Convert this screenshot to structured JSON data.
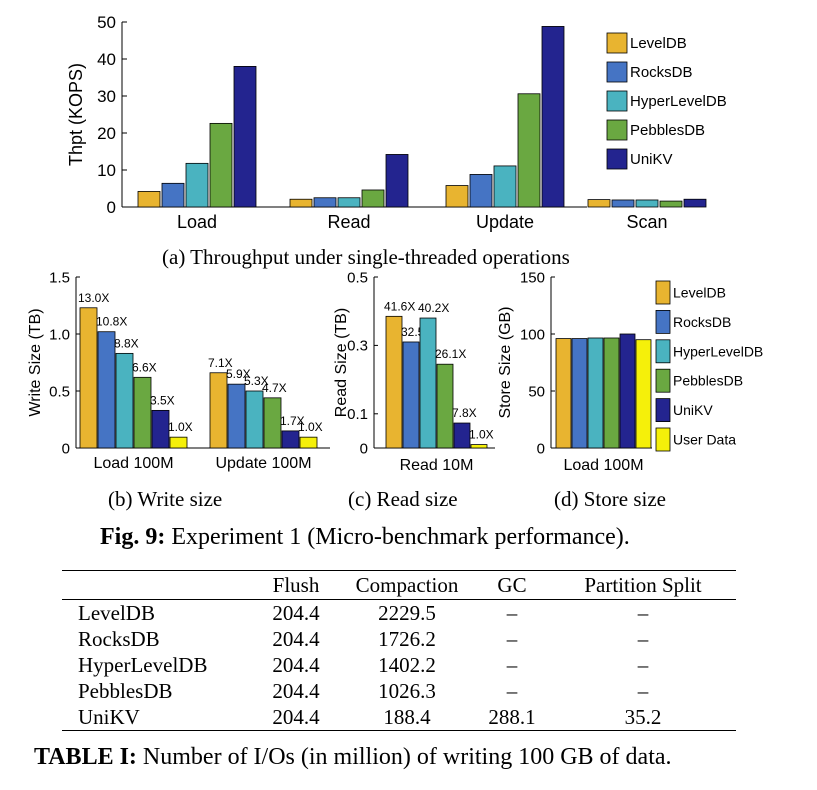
{
  "colors": {
    "LevelDB": "#e8b430",
    "RocksDB": "#4574c4",
    "HyperLevelDB": "#4ab3c0",
    "PebblesDB": "#6aa841",
    "UniKV": "#23248f",
    "User Data": "#f5f00a"
  },
  "chart_data": [
    {
      "id": "a",
      "type": "bar",
      "title": "(a) Throughput under single-threaded operations",
      "xlabel": "",
      "ylabel": "Thpt (KOPS)",
      "ylim": [
        0,
        50
      ],
      "yticks": [
        "0",
        "10",
        "20",
        "30",
        "40",
        "50"
      ],
      "categories": [
        "Load",
        "Read",
        "Update",
        "Scan"
      ],
      "legend": "right",
      "series": [
        {
          "name": "LevelDB",
          "values": [
            4.2,
            2.1,
            5.8,
            2.0
          ]
        },
        {
          "name": "RocksDB",
          "values": [
            6.4,
            2.5,
            8.8,
            1.9
          ]
        },
        {
          "name": "HyperLevelDB",
          "values": [
            11.8,
            2.5,
            11.1,
            1.9
          ]
        },
        {
          "name": "PebblesDB",
          "values": [
            22.6,
            4.6,
            30.6,
            1.6
          ]
        },
        {
          "name": "UniKV",
          "values": [
            38.0,
            14.2,
            48.8,
            2.1
          ]
        }
      ]
    },
    {
      "id": "b",
      "type": "bar",
      "title": "(b) Write size",
      "xlabel": "",
      "ylabel": "Write Size (TB)",
      "ylim": [
        0,
        1.5
      ],
      "yticks": [
        "0",
        "0.5",
        "1.0",
        "1.5"
      ],
      "categories": [
        "Load 100M",
        "Update 100M"
      ],
      "series": [
        {
          "name": "LevelDB",
          "values": [
            1.23,
            0.66
          ],
          "labels": [
            "13.0X",
            "7.1X"
          ]
        },
        {
          "name": "RocksDB",
          "values": [
            1.02,
            0.56
          ],
          "labels": [
            "10.8X",
            "5.9X"
          ]
        },
        {
          "name": "HyperLevelDB",
          "values": [
            0.83,
            0.5
          ],
          "labels": [
            "8.8X",
            "5.3X"
          ]
        },
        {
          "name": "PebblesDB",
          "values": [
            0.62,
            0.44
          ],
          "labels": [
            "6.6X",
            "4.7X"
          ]
        },
        {
          "name": "UniKV",
          "values": [
            0.33,
            0.15
          ],
          "labels": [
            "3.5X",
            "1.7X"
          ]
        },
        {
          "name": "User Data",
          "values": [
            0.095,
            0.095
          ],
          "labels": [
            "1.0X",
            "1.0X"
          ]
        }
      ]
    },
    {
      "id": "c",
      "type": "bar",
      "title": "(c) Read size",
      "xlabel": "",
      "ylabel": "Read Size (TB)",
      "ylim": [
        0,
        0.5
      ],
      "yticks": [
        "0",
        "0.1",
        "0.3",
        "0.5"
      ],
      "categories": [
        "Read 10M"
      ],
      "series": [
        {
          "name": "LevelDB",
          "values": [
            0.385
          ],
          "labels": [
            "41.6X"
          ]
        },
        {
          "name": "RocksDB",
          "values": [
            0.31
          ],
          "labels": [
            "32.5X"
          ]
        },
        {
          "name": "HyperLevelDB",
          "values": [
            0.38
          ],
          "labels": [
            "40.2X"
          ]
        },
        {
          "name": "PebblesDB",
          "values": [
            0.245
          ],
          "labels": [
            "26.1X"
          ]
        },
        {
          "name": "UniKV",
          "values": [
            0.073
          ],
          "labels": [
            "7.8X"
          ]
        },
        {
          "name": "User Data",
          "values": [
            0.01
          ],
          "labels": [
            "1.0X"
          ]
        }
      ]
    },
    {
      "id": "d",
      "type": "bar",
      "title": "(d) Store size",
      "xlabel": "",
      "ylabel": "Store Size (GB)",
      "ylim": [
        0,
        150
      ],
      "yticks": [
        "0",
        "50",
        "100",
        "150"
      ],
      "categories": [
        "Load 100M"
      ],
      "legend": "right",
      "series": [
        {
          "name": "LevelDB",
          "values": [
            96
          ]
        },
        {
          "name": "RocksDB",
          "values": [
            96
          ]
        },
        {
          "name": "HyperLevelDB",
          "values": [
            96.5
          ]
        },
        {
          "name": "PebblesDB",
          "values": [
            96.5
          ]
        },
        {
          "name": "UniKV",
          "values": [
            100
          ]
        },
        {
          "name": "User Data",
          "values": [
            95
          ]
        }
      ]
    }
  ],
  "figure": {
    "caption_label": "Fig. 9:",
    "caption_text": " Experiment 1 (Micro-benchmark performance)."
  },
  "table": {
    "columns": [
      "",
      "Flush",
      "Compaction",
      "GC",
      "Partition Split"
    ],
    "rows": [
      [
        "LevelDB",
        "204.4",
        "2229.5",
        "–",
        "–"
      ],
      [
        "RocksDB",
        "204.4",
        "1726.2",
        "–",
        "–"
      ],
      [
        "HyperLevelDB",
        "204.4",
        "1402.2",
        "–",
        "–"
      ],
      [
        "PebblesDB",
        "204.4",
        "1026.3",
        "–",
        "–"
      ],
      [
        "UniKV",
        "204.4",
        "188.4",
        "288.1",
        "35.2"
      ]
    ],
    "caption_label": "TABLE I:",
    "caption_text": " Number of I/Os (in million) of writing 100 GB of data."
  }
}
